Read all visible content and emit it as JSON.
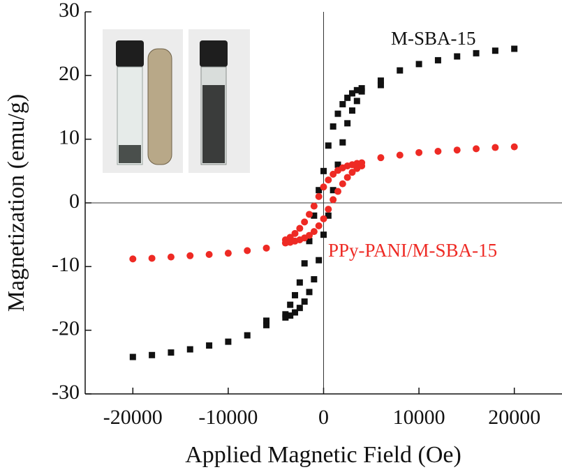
{
  "chart_data": {
    "type": "scatter",
    "xlabel": "Applied Magnetic Field (Oe)",
    "ylabel": "Magnetization (emu/g)",
    "xlim": [
      -25000,
      25000
    ],
    "ylim": [
      -30,
      30
    ],
    "xticks": [
      -20000,
      -10000,
      0,
      10000,
      20000
    ],
    "yticks": [
      -30,
      -20,
      -10,
      0,
      10,
      20,
      30
    ],
    "zero_lines": true,
    "series": [
      {
        "name": "M-SBA-15",
        "color": "#111111",
        "marker": "square",
        "x": [
          -20000,
          -18000,
          -16000,
          -14000,
          -12000,
          -10000,
          -8000,
          -6000,
          -6000,
          4000,
          3500,
          3000,
          2500,
          2000,
          1500,
          1000,
          500,
          0,
          -500,
          -1000,
          -1500,
          -2000,
          -2500,
          -3000,
          -3500,
          -4000,
          -4000,
          -3500,
          -3000,
          -2500,
          -2000,
          -1500,
          -1000,
          -500,
          0,
          500,
          1000,
          1500,
          2000,
          2500,
          3000,
          3500,
          4000,
          6000,
          6000,
          8000,
          10000,
          12000,
          14000,
          16000,
          18000,
          20000
        ],
        "values": [
          -24.2,
          -23.9,
          -23.5,
          -23.0,
          -22.4,
          -21.8,
          -20.8,
          -19.2,
          -18.5,
          18,
          17.7,
          17.2,
          16.5,
          15.5,
          14,
          12,
          9,
          5,
          2,
          -2,
          -6,
          -9.5,
          -12.5,
          -14.5,
          -16,
          -17.5,
          -18,
          -17.7,
          -17.2,
          -16.5,
          -15.5,
          -14,
          -12,
          -9,
          -5,
          -2,
          2,
          6,
          9.5,
          12.5,
          14.5,
          16,
          17.5,
          18.5,
          19.2,
          20.8,
          21.8,
          22.4,
          23.0,
          23.5,
          23.9,
          24.2
        ]
      },
      {
        "name": "PPy-PANI/M-SBA-15",
        "color": "#ee2a24",
        "marker": "circle",
        "x": [
          -20000,
          -18000,
          -16000,
          -14000,
          -12000,
          -10000,
          -8000,
          -6000,
          4000,
          3500,
          3000,
          2500,
          2000,
          1500,
          1000,
          500,
          0,
          -500,
          -1000,
          -1500,
          -2000,
          -2500,
          -3000,
          -3500,
          -4000,
          -4000,
          -3500,
          -3000,
          -2500,
          -2000,
          -1500,
          -1000,
          -500,
          0,
          500,
          1000,
          1500,
          2000,
          2500,
          3000,
          3500,
          4000,
          6000,
          8000,
          10000,
          12000,
          14000,
          16000,
          18000,
          20000
        ],
        "values": [
          -8.8,
          -8.7,
          -8.5,
          -8.3,
          -8.1,
          -7.9,
          -7.5,
          -7.1,
          6.3,
          6.2,
          6.0,
          5.8,
          5.5,
          5.1,
          4.5,
          3.6,
          2.5,
          1.0,
          -0.5,
          -1.8,
          -3,
          -4,
          -4.8,
          -5.4,
          -5.8,
          -6.3,
          -6.2,
          -6.0,
          -5.8,
          -5.5,
          -5.1,
          -4.5,
          -3.6,
          -2.5,
          -1.0,
          0.5,
          1.8,
          3,
          4,
          4.8,
          5.4,
          5.8,
          7.1,
          7.5,
          7.9,
          8.1,
          8.3,
          8.5,
          8.7,
          8.8
        ]
      }
    ]
  }
}
